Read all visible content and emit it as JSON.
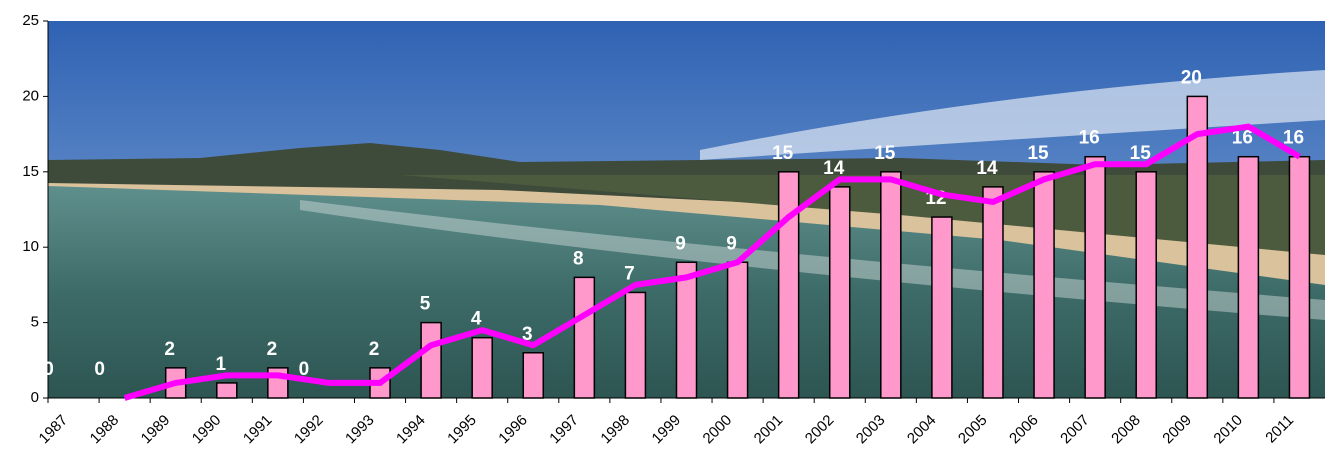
{
  "chart_data": {
    "type": "bar",
    "categories": [
      "1987",
      "1988",
      "1989",
      "1990",
      "1991",
      "1992",
      "1993",
      "1994",
      "1995",
      "1996",
      "1997",
      "1998",
      "1999",
      "2000",
      "2001",
      "2002",
      "2003",
      "2004",
      "2005",
      "2006",
      "2007",
      "2008",
      "2009",
      "2010",
      "2011"
    ],
    "series": [
      {
        "type": "bar",
        "color": "#ff99cc",
        "values": [
          0,
          0,
          2,
          1,
          2,
          0,
          2,
          5,
          4,
          3,
          8,
          7,
          9,
          9,
          15,
          14,
          15,
          12,
          14,
          15,
          16,
          15,
          20,
          16,
          16
        ]
      },
      {
        "type": "line",
        "color": "#ff00ff",
        "values": [
          null,
          0,
          1,
          1.5,
          1.5,
          1,
          1,
          3.5,
          4.5,
          3.5,
          5.5,
          7.5,
          8,
          9,
          12,
          14.5,
          14.5,
          13.5,
          13,
          14.5,
          15.5,
          15.5,
          17.5,
          18,
          16
        ]
      }
    ],
    "ylim": [
      0,
      25
    ],
    "yticks": [
      0,
      5,
      10,
      15,
      20,
      25
    ]
  }
}
